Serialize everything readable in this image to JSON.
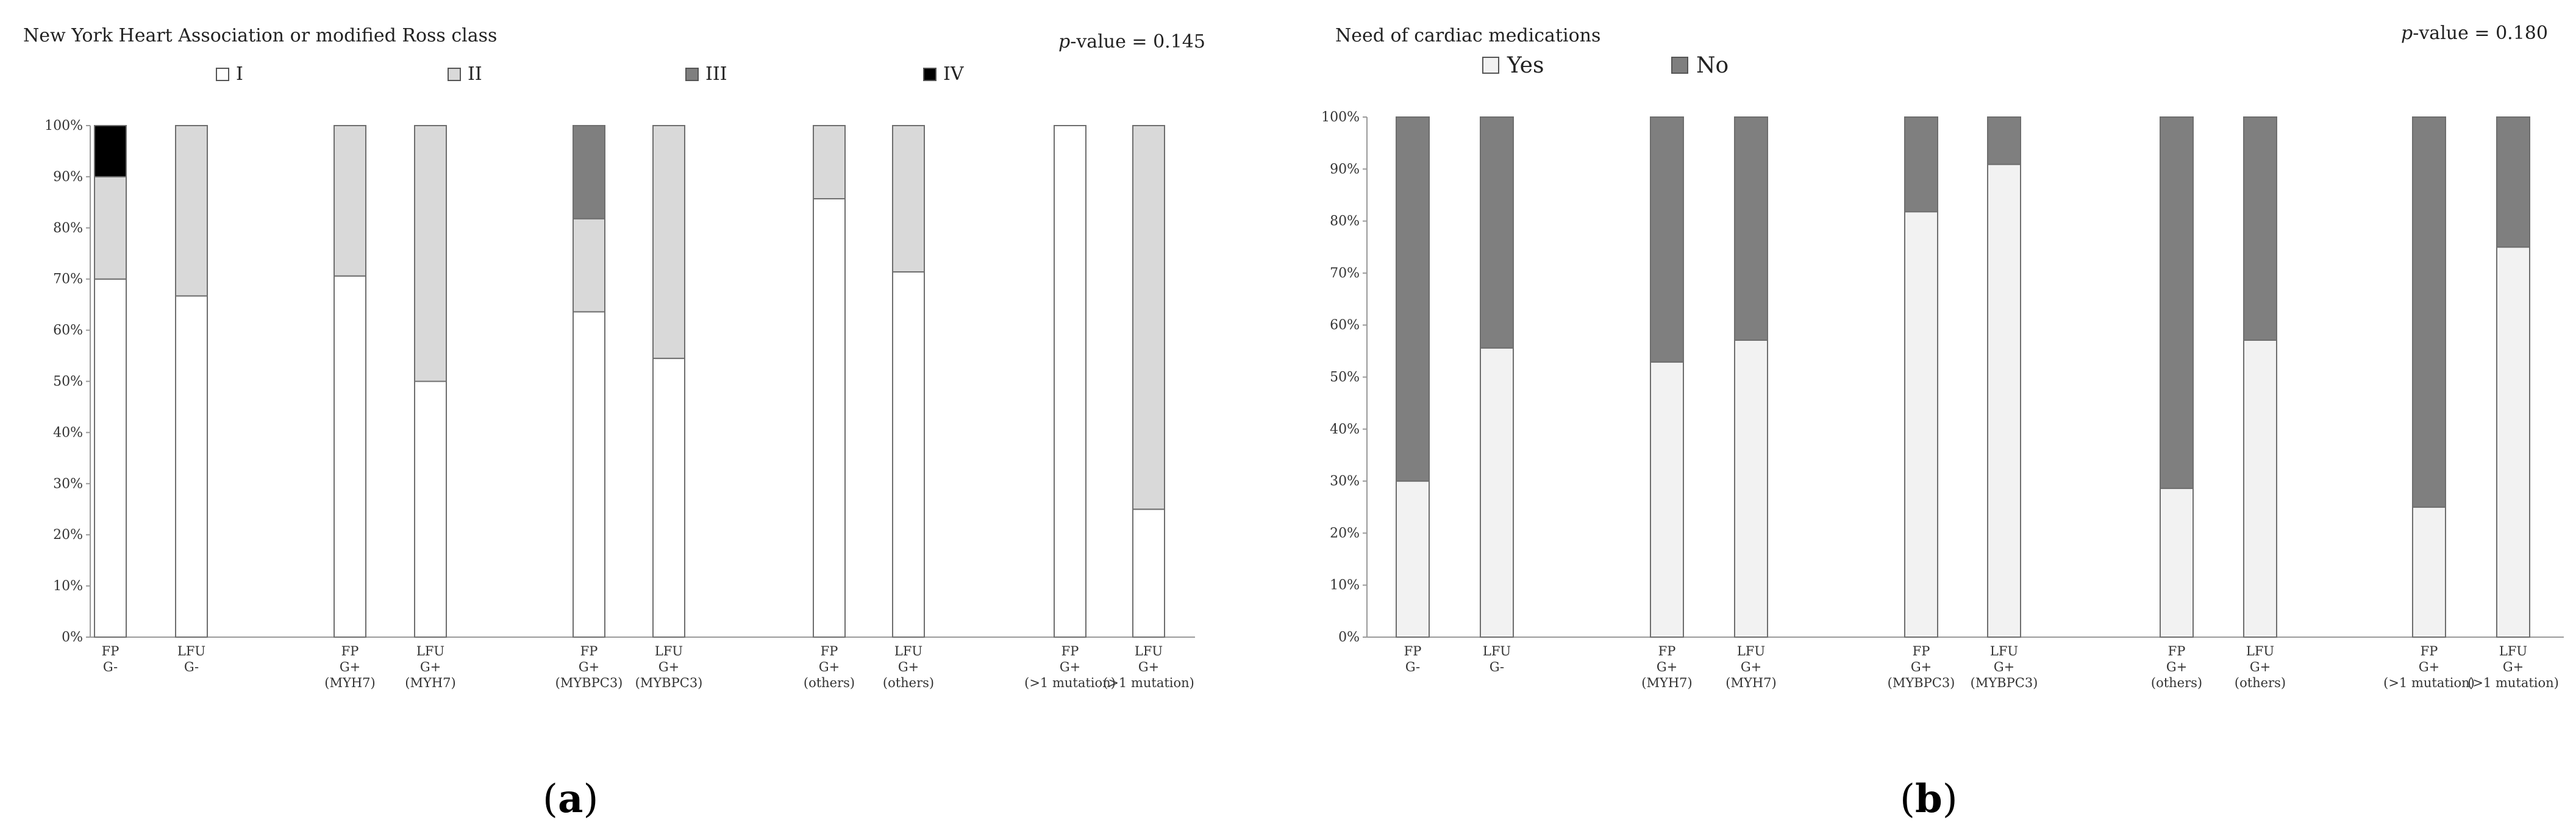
{
  "chart_data": [
    {
      "panel": "a",
      "panel_label": "a",
      "type": "bar",
      "stacked": true,
      "title": "New York Heart Association or modified Ross class",
      "p_value_label": "p",
      "p_value_text": "-value = 0.145",
      "ylim": [
        0,
        100
      ],
      "y_ticks": [
        "0%",
        "10%",
        "20%",
        "30%",
        "40%",
        "50%",
        "60%",
        "70%",
        "80%",
        "90%",
        "100%"
      ],
      "legend_position": "top",
      "categories": [
        [
          "FP",
          "G-"
        ],
        [
          "LFU",
          "G-"
        ],
        [
          "FP",
          "G+",
          "(MYH7)"
        ],
        [
          "LFU",
          "G+",
          "(MYH7)"
        ],
        [
          "FP",
          "G+",
          "(MYBPC3)"
        ],
        [
          "LFU",
          "G+",
          "(MYBPC3)"
        ],
        [
          "FP",
          "G+",
          "(others)"
        ],
        [
          "LFU",
          "G+",
          "(others)"
        ],
        [
          "FP",
          "G+",
          "(>1 mutation)"
        ],
        [
          "LFU",
          "G+",
          "(>1 mutation)"
        ]
      ],
      "series": [
        {
          "name": "I",
          "color": "#ffffff",
          "values": [
            70,
            66.7,
            70.6,
            50,
            63.6,
            54.5,
            85.7,
            71.4,
            100,
            25
          ]
        },
        {
          "name": "II",
          "color": "#d9d9d9",
          "values": [
            20,
            33.3,
            29.4,
            50,
            18.2,
            45.5,
            14.3,
            28.6,
            0,
            75
          ]
        },
        {
          "name": "III",
          "color": "#7f7f7f",
          "values": [
            0,
            0,
            0,
            0,
            18.2,
            0,
            0,
            0,
            0,
            0
          ]
        },
        {
          "name": "IV",
          "color": "#000000",
          "values": [
            10,
            0,
            0,
            0,
            0,
            0,
            0,
            0,
            0,
            0
          ]
        }
      ]
    },
    {
      "panel": "b",
      "panel_label": "b",
      "type": "bar",
      "stacked": true,
      "title": "Need of cardiac medications",
      "p_value_label": "p",
      "p_value_text": "-value = 0.180",
      "ylim": [
        0,
        100
      ],
      "y_ticks": [
        "0%",
        "10%",
        "20%",
        "30%",
        "40%",
        "50%",
        "60%",
        "70%",
        "80%",
        "90%",
        "100%"
      ],
      "legend_position": "top-left",
      "categories": [
        [
          "FP",
          "G-"
        ],
        [
          "LFU",
          "G-"
        ],
        [
          "FP",
          "G+",
          "(MYH7)"
        ],
        [
          "LFU",
          "G+",
          "(MYH7)"
        ],
        [
          "FP",
          "G+",
          "(MYBPC3)"
        ],
        [
          "LFU",
          "G+",
          "(MYBPC3)"
        ],
        [
          "FP",
          "G+",
          "(others)"
        ],
        [
          "LFU",
          "G+",
          "(others)"
        ],
        [
          "FP",
          "G+",
          "(>1 mutation)"
        ],
        [
          "LFU",
          "G+",
          "(>1 mutation)"
        ]
      ],
      "series": [
        {
          "name": "Yes",
          "color": "#f2f2f2",
          "values": [
            30,
            55.6,
            52.9,
            57.1,
            81.8,
            90.9,
            28.6,
            57.1,
            25,
            75
          ]
        },
        {
          "name": "No",
          "color": "#7f7f7f",
          "values": [
            70,
            44.4,
            47.1,
            42.9,
            18.2,
            9.1,
            71.4,
            42.9,
            75,
            25
          ]
        }
      ]
    }
  ]
}
